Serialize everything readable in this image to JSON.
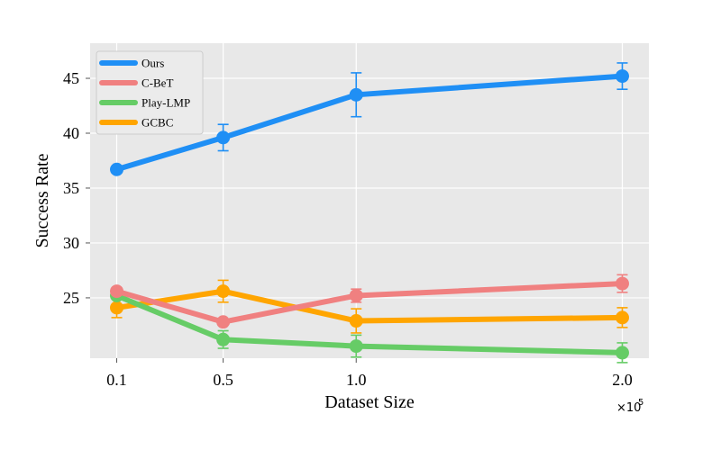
{
  "chart_data": {
    "type": "line",
    "xlabel": "Dataset Size",
    "ylabel": "Success Rate",
    "x_multiplier": "×10",
    "x_multiplier_exp": "5",
    "x": [
      0.1,
      0.5,
      1.0,
      2.0
    ],
    "x_tick_labels": [
      "0.1",
      "0.5",
      "1.0",
      "2.0"
    ],
    "y_ticks": [
      25,
      30,
      35,
      40,
      45
    ],
    "xlim": [
      0.0,
      2.1
    ],
    "ylim": [
      19.5,
      48.2
    ],
    "grid": true,
    "legend_position": "top-left",
    "series": [
      {
        "name": "Ours",
        "color": "#1f8ff5",
        "values": [
          36.7,
          39.6,
          43.5,
          45.2
        ],
        "errors": [
          0.0,
          1.2,
          2.0,
          1.2
        ]
      },
      {
        "name": "C-BeT",
        "color": "#f08080",
        "values": [
          25.6,
          22.8,
          25.2,
          26.3
        ],
        "errors": [
          0.0,
          0.0,
          0.6,
          0.8
        ]
      },
      {
        "name": "Play-LMP",
        "color": "#66cc66",
        "values": [
          25.2,
          21.2,
          20.6,
          20.0
        ],
        "errors": [
          0.0,
          0.8,
          1.0,
          0.9
        ]
      },
      {
        "name": "GCBC",
        "color": "#ffa500",
        "values": [
          24.1,
          25.6,
          22.9,
          23.2
        ],
        "errors": [
          0.9,
          1.0,
          1.1,
          0.9
        ]
      }
    ]
  }
}
